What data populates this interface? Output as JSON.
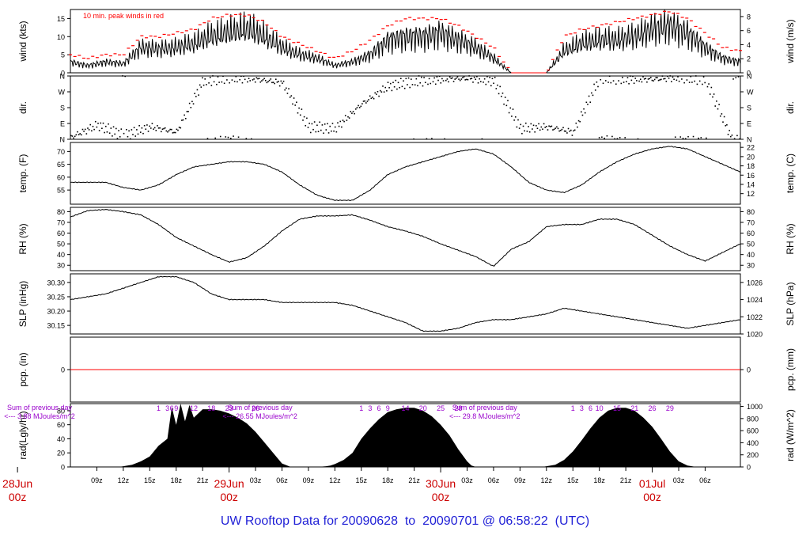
{
  "footer": {
    "prefix": "UW Rooftop Data for",
    "start": "20090628",
    "sep": "to",
    "end": "20090701",
    "at": "@",
    "time": "06:58:22",
    "tz": "(UTC)"
  },
  "colors": {
    "peak": "#ff0000",
    "purple": "#9900cc",
    "date": "#cc0000",
    "footer": "#1f1fd6",
    "line": "#000000"
  },
  "chart_data": {
    "type": "line",
    "x_hours_start": "28Jun 06z",
    "x_hours_total": 76,
    "x_ticks": [
      "09z",
      "12z",
      "15z",
      "18z",
      "21z",
      "03z",
      "06z",
      "09z",
      "12z",
      "15z",
      "18z",
      "21z",
      "03z",
      "06z",
      "09z",
      "12z",
      "15z",
      "18z",
      "21z",
      "03z",
      "06z"
    ],
    "x_tick_hours": [
      3,
      6,
      9,
      12,
      15,
      21,
      24,
      27,
      30,
      33,
      36,
      39,
      45,
      48,
      51,
      54,
      57,
      60,
      63,
      69,
      72
    ],
    "x_days": [
      {
        "hour": -6,
        "date": "28Jun",
        "z": "00z"
      },
      {
        "hour": 18,
        "date": "29Jun",
        "z": "00z"
      },
      {
        "hour": 42,
        "date": "30Jun",
        "z": "00z"
      },
      {
        "hour": 66,
        "date": "01Jul",
        "z": "00z"
      }
    ],
    "panels": [
      {
        "id": "wind",
        "ylabel_left": "wind (kts)",
        "ylabel_right": "wind (m/s)",
        "left_ticks": [
          "0",
          "5",
          "10",
          "15"
        ],
        "left_tick_vals": [
          0,
          5,
          10,
          15
        ],
        "right_ticks": [
          "0",
          "2",
          "4",
          "6",
          "8"
        ],
        "right_tick_vals": [
          0,
          3.89,
          7.78,
          11.66,
          15.55
        ],
        "ylim": [
          0,
          17.5
        ],
        "annotation": "10 min. peak winds in red",
        "series": [
          {
            "name": "wind",
            "x": [
              0,
              2,
              4,
              6,
              8,
              10,
              12,
              14,
              16,
              18,
              20,
              22,
              24,
              26,
              28,
              30,
              32,
              34,
              36,
              38,
              40,
              42,
              44,
              46,
              48,
              50,
              52,
              54,
              56,
              58,
              60,
              62,
              64,
              66,
              68,
              70,
              72,
              74,
              76
            ],
            "values": [
              3,
              2,
              3,
              2.5,
              7,
              6.5,
              7,
              8,
              10,
              11,
              12,
              10,
              7,
              5,
              4,
              2,
              3,
              5,
              9,
              10,
              10,
              11,
              9,
              7,
              4,
              0,
              0,
              0,
              6,
              8,
              9,
              9,
              10,
              12,
              13,
              11,
              7,
              4,
              3
            ]
          },
          {
            "name": "10 min. peak winds",
            "x": [
              0,
              2,
              4,
              6,
              8,
              10,
              12,
              14,
              16,
              18,
              20,
              22,
              24,
              26,
              28,
              30,
              32,
              34,
              36,
              38,
              40,
              42,
              44,
              46,
              48,
              50,
              52,
              54,
              56,
              58,
              60,
              62,
              64,
              66,
              68,
              70,
              72,
              74,
              76
            ],
            "values": [
              5,
              4,
              5,
              5,
              10,
              10,
              11,
              12,
              15,
              16,
              16,
              14,
              10,
              8,
              6,
              4,
              6,
              9,
              13,
              15,
              15,
              15,
              13,
              10,
              7,
              0,
              0,
              0,
              10,
              12,
              13,
              14,
              15,
              16,
              17,
              15,
              11,
              7,
              6
            ]
          }
        ]
      },
      {
        "id": "dir",
        "ylabel_left": "dir.",
        "ylabel_right": "dir.",
        "left_ticks": [
          "N",
          "E",
          "S",
          "W",
          "N"
        ],
        "left_tick_vals": [
          0,
          90,
          180,
          270,
          360
        ],
        "right_ticks": [
          "N",
          "E",
          "S",
          "W",
          "N"
        ],
        "right_tick_vals": [
          0,
          90,
          180,
          270,
          360
        ],
        "ylim": [
          0,
          360
        ],
        "series": [
          {
            "name": "dir",
            "x": [
              0,
              3,
              6,
              9,
              12,
              15,
              18,
              21,
              24,
              27,
              30,
              33,
              36,
              39,
              42,
              45,
              48,
              51,
              54,
              57,
              60,
              63,
              66,
              69,
              72,
              75
            ],
            "values": [
              10,
              80,
              20,
              70,
              40,
              330,
              350,
              340,
              320,
              70,
              60,
              200,
              300,
              330,
              340,
              345,
              330,
              60,
              70,
              40,
              350,
              340,
              340,
              350,
              340,
              0
            ]
          }
        ]
      },
      {
        "id": "temp",
        "ylabel_left": "temp. (F)",
        "ylabel_right": "temp. (C)",
        "left_ticks": [
          "55",
          "60",
          "65",
          "70"
        ],
        "left_tick_vals": [
          55,
          60,
          65,
          70
        ],
        "right_ticks": [
          "12",
          "14",
          "16",
          "18",
          "20",
          "22"
        ],
        "right_tick_vals": [
          53.6,
          57.2,
          60.8,
          64.4,
          68,
          71.6
        ],
        "ylim": [
          49.5,
          73.5
        ],
        "series": [
          {
            "name": "temp",
            "x": [
              0,
              2,
              4,
              6,
              8,
              10,
              12,
              14,
              16,
              18,
              20,
              22,
              24,
              26,
              28,
              30,
              32,
              34,
              36,
              38,
              40,
              42,
              44,
              46,
              48,
              50,
              52,
              54,
              56,
              58,
              60,
              62,
              64,
              66,
              68,
              70,
              72,
              74,
              76
            ],
            "values": [
              58,
              58,
              58,
              56,
              55,
              57,
              61,
              64,
              65,
              66,
              66,
              65,
              62,
              57,
              53,
              51,
              51,
              55,
              61,
              64,
              66,
              68,
              70,
              71,
              69,
              64,
              58,
              55,
              54,
              57,
              62,
              66,
              69,
              71,
              72,
              71,
              68,
              65,
              62
            ]
          }
        ]
      },
      {
        "id": "rh",
        "ylabel_left": "RH (%)",
        "ylabel_right": "RH (%)",
        "left_ticks": [
          "30",
          "40",
          "50",
          "60",
          "70",
          "80"
        ],
        "left_tick_vals": [
          30,
          40,
          50,
          60,
          70,
          80
        ],
        "right_ticks": [
          "30",
          "40",
          "50",
          "60",
          "70",
          "80"
        ],
        "right_tick_vals": [
          30,
          40,
          50,
          60,
          70,
          80
        ],
        "ylim": [
          25,
          84
        ],
        "series": [
          {
            "name": "RH",
            "x": [
              0,
              2,
              4,
              6,
              8,
              10,
              12,
              14,
              16,
              18,
              20,
              22,
              24,
              26,
              28,
              30,
              32,
              34,
              36,
              38,
              40,
              42,
              44,
              46,
              48,
              50,
              52,
              54,
              56,
              58,
              60,
              62,
              64,
              66,
              68,
              70,
              72,
              74,
              76
            ],
            "values": [
              75,
              81,
              82,
              80,
              77,
              68,
              56,
              48,
              40,
              33,
              37,
              48,
              62,
              73,
              76,
              76,
              77,
              72,
              66,
              62,
              57,
              50,
              44,
              38,
              29,
              45,
              52,
              66,
              68,
              68,
              73,
              73,
              68,
              58,
              48,
              40,
              34,
              42,
              50
            ]
          }
        ]
      },
      {
        "id": "slp",
        "ylabel_left": "SLP (inHg)",
        "ylabel_right": "SLP (hPa)",
        "left_ticks": [
          "30.15",
          "30.20",
          "30.25",
          "30.30"
        ],
        "left_tick_vals": [
          30.15,
          30.2,
          30.25,
          30.3
        ],
        "right_ticks": [
          "1020",
          "1022",
          "1024",
          "1026"
        ],
        "right_tick_vals": [
          30.12,
          30.18,
          30.24,
          30.3
        ],
        "ylim": [
          30.12,
          30.33
        ],
        "series": [
          {
            "name": "SLP",
            "x": [
              0,
              2,
              4,
              6,
              8,
              10,
              12,
              14,
              16,
              18,
              20,
              22,
              24,
              26,
              28,
              30,
              32,
              34,
              36,
              38,
              40,
              42,
              44,
              46,
              48,
              50,
              52,
              54,
              56,
              58,
              60,
              62,
              64,
              66,
              68,
              70,
              72,
              74,
              76
            ],
            "values": [
              30.24,
              30.25,
              30.26,
              30.28,
              30.3,
              30.32,
              30.32,
              30.3,
              30.26,
              30.24,
              30.24,
              30.24,
              30.23,
              30.23,
              30.23,
              30.23,
              30.22,
              30.2,
              30.18,
              30.16,
              30.13,
              30.13,
              30.14,
              30.16,
              30.17,
              30.17,
              30.18,
              30.19,
              30.21,
              30.2,
              30.19,
              30.18,
              30.17,
              30.16,
              30.15,
              30.14,
              30.15,
              30.16,
              30.17
            ]
          }
        ]
      },
      {
        "id": "pcp",
        "ylabel_left": "pcp. (in)",
        "ylabel_right": "pcp. (mm)",
        "left_ticks": [
          "0"
        ],
        "left_tick_vals": [
          0
        ],
        "right_ticks": [
          "0"
        ],
        "right_tick_vals": [
          0
        ],
        "ylim": [
          -1,
          1
        ],
        "series": [
          {
            "name": "pcp",
            "x": [
              0,
              76
            ],
            "values": [
              0,
              0
            ]
          }
        ]
      },
      {
        "id": "rad",
        "ylabel_left": "rad(Lgly/hr)",
        "ylabel_right": "rad (W/m^2)",
        "left_ticks": [
          "0",
          "20",
          "40",
          "60",
          "80"
        ],
        "left_tick_vals": [
          0,
          20,
          40,
          60,
          80
        ],
        "right_ticks": [
          "0",
          "200",
          "400",
          "600",
          "800",
          "1000"
        ],
        "right_tick_vals": [
          0,
          17.2,
          34.4,
          51.6,
          68.8,
          86
        ],
        "ylim": [
          0,
          90
        ],
        "series": [
          {
            "name": "rad",
            "x": [
              0,
              5.5,
              6,
              7,
              8,
              9,
              10,
              11,
              11.5,
              12,
              12.5,
              13,
              13.5,
              14,
              15,
              16,
              17,
              18,
              19,
              20,
              21,
              22,
              23,
              24,
              25,
              26,
              27,
              28,
              29,
              29.5,
              30,
              31,
              32,
              33,
              34,
              35,
              36,
              37,
              38,
              39,
              40,
              41,
              42,
              43,
              44,
              45,
              45.5,
              46,
              49,
              53.5,
              54,
              55,
              56,
              57,
              58,
              59,
              60,
              61,
              62,
              63,
              64,
              65,
              66,
              67,
              68,
              69,
              70,
              70.5,
              71,
              76
            ],
            "values": [
              0,
              0,
              1,
              3,
              8,
              15,
              30,
              40,
              85,
              60,
              90,
              65,
              88,
              70,
              82,
              82,
              80,
              76,
              70,
              62,
              50,
              35,
              20,
              5,
              0,
              0,
              0,
              0,
              1,
              2,
              4,
              10,
              20,
              40,
              55,
              68,
              78,
              82,
              84,
              84,
              80,
              72,
              60,
              45,
              25,
              8,
              2,
              0,
              0,
              0,
              1,
              3,
              10,
              22,
              38,
              55,
              70,
              80,
              84,
              84,
              80,
              70,
              57,
              40,
              22,
              8,
              2,
              1,
              0,
              0
            ]
          }
        ],
        "day_notes": [
          {
            "hour": -3.5,
            "line1": "Sum of previous day",
            "line2": "<--- 3.88 MJoules/m^2",
            "hours": [
              "1",
              "3",
              "6",
              "9",
              "12",
              "18",
              "23",
              "26"
            ],
            "hour_x": [
              10,
              11,
              11.5,
              12,
              14,
              16,
              18,
              21
            ]
          },
          {
            "hour": 21.5,
            "line1": "Sum of previous day",
            "line2": "<--- 26.55 MJoules/m^2",
            "hours": [
              "1",
              "3",
              "6",
              "9",
              "14",
              "20",
              "25",
              "28"
            ],
            "hour_x": [
              33,
              34,
              35,
              36,
              38,
              40,
              42,
              44
            ]
          },
          {
            "hour": 47,
            "line1": "Sum of previous day",
            "line2": "<--- 29.8 MJoules/m^2",
            "hours": [
              "1",
              "3",
              "6",
              "10",
              "15",
              "21",
              "26",
              "29"
            ],
            "hour_x": [
              57,
              58,
              59,
              60,
              62,
              64,
              66,
              68
            ]
          }
        ]
      }
    ]
  }
}
